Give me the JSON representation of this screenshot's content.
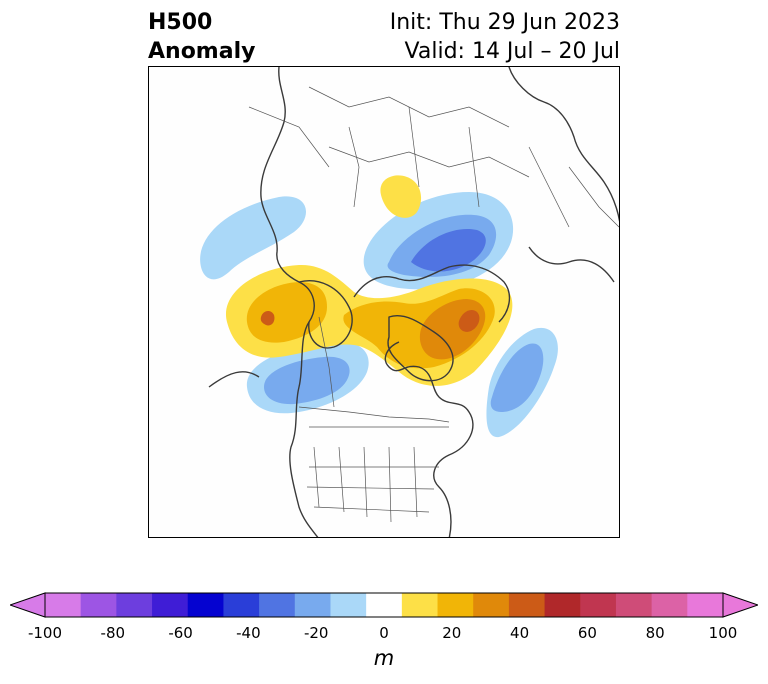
{
  "header": {
    "title_line1": "H500",
    "title_line2": "Anomaly",
    "init_text": "Init: Thu 29 Jun 2023",
    "valid_text": "Valid: 14 Jul – 20 Jul"
  },
  "colorbar": {
    "unit": "m",
    "tick_labels": [
      "-100",
      "-80",
      "-60",
      "-40",
      "-20",
      "0",
      "20",
      "40",
      "60",
      "80",
      "100"
    ],
    "levels": [
      -100,
      -90,
      -80,
      -70,
      -60,
      -50,
      -40,
      -30,
      -20,
      -10,
      10,
      20,
      30,
      40,
      50,
      60,
      70,
      80,
      90,
      100
    ],
    "colors": [
      "#d77be8",
      "#9d55e4",
      "#6d3ede",
      "#3f1dd6",
      "#0503d0",
      "#2a3ed8",
      "#5074e2",
      "#78aaee",
      "#aad8f8",
      "#ffffff",
      "#fde047",
      "#f1b507",
      "#e0890a",
      "#cc5b17",
      "#b0282a",
      "#c03650",
      "#cf4c78",
      "#dc62a6",
      "#e878da"
    ],
    "extend_low_color": "#d77be8",
    "extend_high_color": "#e878da"
  },
  "map": {
    "projection": "north polar stereographic",
    "features": [
      "coastlines",
      "country borders",
      "us state borders"
    ]
  }
}
